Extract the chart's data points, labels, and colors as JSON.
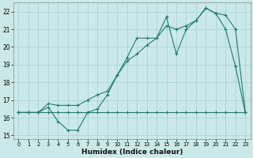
{
  "xlabel": "Humidex (Indice chaleur)",
  "xlim": [
    -0.5,
    23.5
  ],
  "ylim": [
    14.8,
    22.5
  ],
  "yticks": [
    15,
    16,
    17,
    18,
    19,
    20,
    21,
    22
  ],
  "xticks": [
    0,
    1,
    2,
    3,
    4,
    5,
    6,
    7,
    8,
    9,
    10,
    11,
    12,
    13,
    14,
    15,
    16,
    17,
    18,
    19,
    20,
    21,
    22,
    23
  ],
  "bg_color": "#cce9e9",
  "line_color": "#1e7b6e",
  "grid_color": "#aad4d4",
  "line1_x": [
    0,
    1,
    2,
    3,
    4,
    5,
    6,
    7,
    8,
    9,
    10,
    11,
    12,
    13,
    14,
    15,
    16,
    17,
    18,
    19,
    20,
    21,
    22,
    23
  ],
  "line1_y": [
    16.3,
    16.3,
    16.3,
    16.3,
    16.3,
    16.3,
    16.3,
    16.3,
    16.3,
    16.3,
    16.3,
    16.3,
    16.3,
    16.3,
    16.3,
    16.3,
    16.3,
    16.3,
    16.3,
    16.3,
    16.3,
    16.3,
    16.3,
    16.3
  ],
  "line2_x": [
    0,
    1,
    2,
    3,
    4,
    5,
    6,
    7,
    8,
    9,
    10,
    11,
    12,
    13,
    14,
    15,
    16,
    17,
    18,
    19,
    20,
    21,
    22,
    23
  ],
  "line2_y": [
    16.3,
    16.3,
    16.3,
    16.6,
    15.8,
    15.3,
    15.3,
    16.3,
    16.5,
    17.3,
    18.4,
    19.4,
    20.5,
    20.5,
    20.5,
    21.7,
    19.6,
    21.0,
    21.5,
    22.2,
    21.9,
    21.0,
    18.9,
    16.3
  ],
  "line3_x": [
    0,
    1,
    2,
    3,
    4,
    5,
    6,
    7,
    8,
    9,
    10,
    11,
    12,
    13,
    14,
    15,
    16,
    17,
    18,
    19,
    20,
    21,
    22,
    23
  ],
  "line3_y": [
    16.3,
    16.3,
    16.3,
    16.8,
    16.7,
    16.7,
    16.7,
    17.0,
    17.3,
    17.5,
    18.4,
    19.2,
    19.6,
    20.1,
    20.5,
    21.2,
    21.0,
    21.2,
    21.5,
    22.2,
    21.9,
    21.8,
    21.0,
    16.3
  ]
}
